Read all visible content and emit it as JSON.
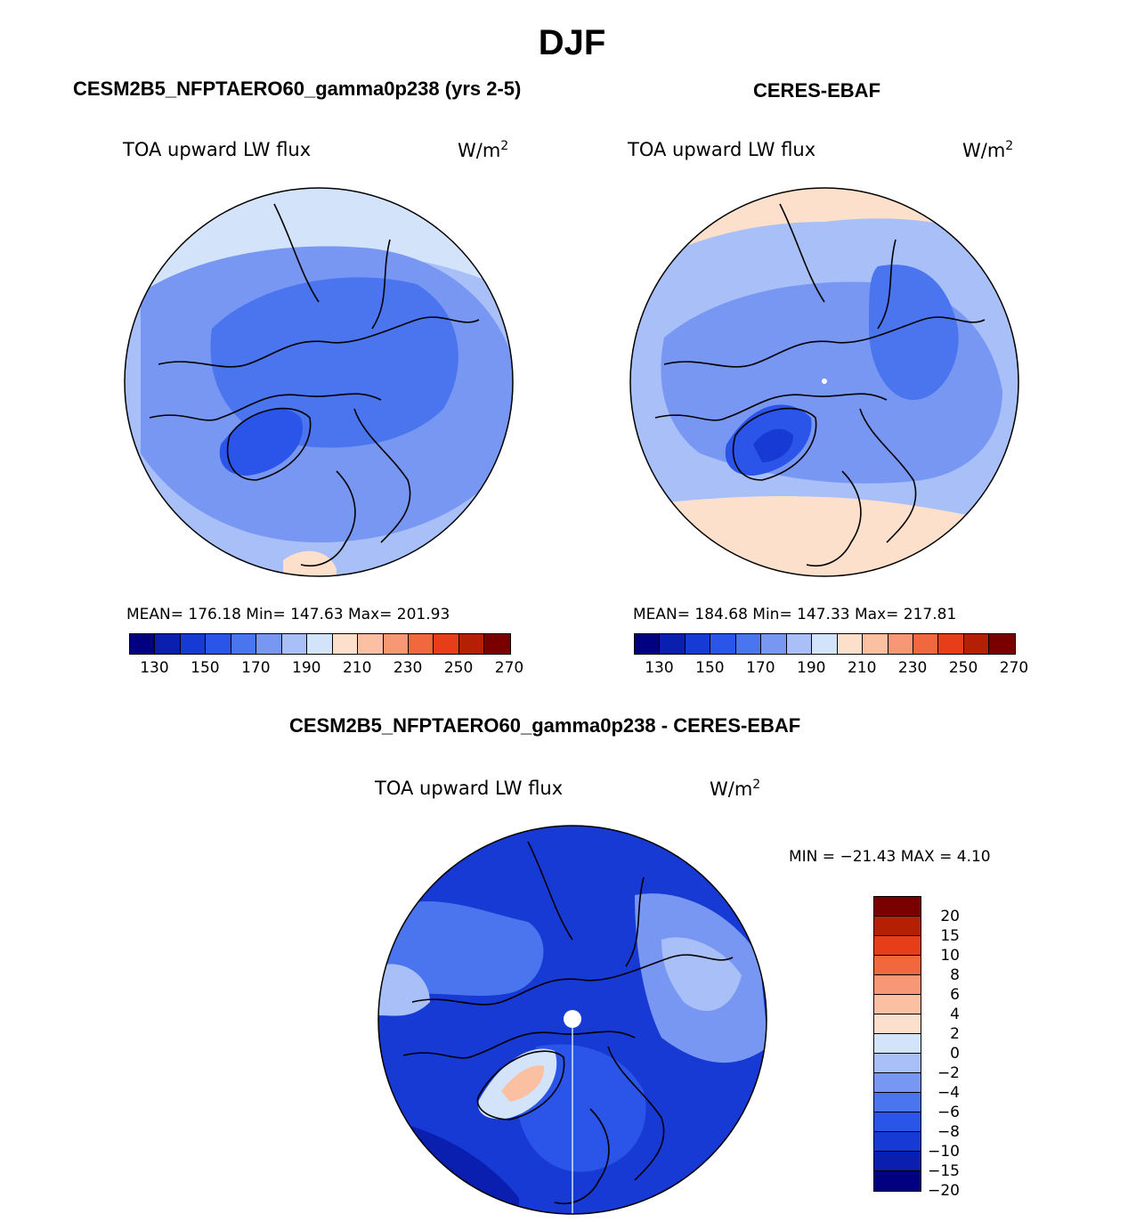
{
  "title": "DJF",
  "panels": {
    "model": {
      "title": "CESM2B5_NFPTAERO60_gamma0p238 (yrs 2-5)",
      "var_label": "TOA upward LW flux",
      "units_base": "W/m",
      "units_exp": "2",
      "stats": "MEAN= 176.18   Min= 147.63   Max= 201.93"
    },
    "obs": {
      "title": "CERES-EBAF",
      "var_label": "TOA upward LW flux",
      "units_base": "W/m",
      "units_exp": "2",
      "stats": "MEAN= 184.68   Min= 147.33   Max= 217.81"
    },
    "diff": {
      "title": "CESM2B5_NFPTAERO60_gamma0p238 - CERES-EBAF",
      "var_label": "TOA upward LW flux",
      "units_base": "W/m",
      "units_exp": "2",
      "stats": "MIN = −21.43 MAX =    4.10"
    }
  },
  "colorbars": {
    "abs_colors": [
      "#000080",
      "#0a1fb0",
      "#1739d4",
      "#2b54e8",
      "#4a75ee",
      "#7897f3",
      "#a8c0f7",
      "#d3e4fa",
      "#fde0cc",
      "#fbbfa2",
      "#f79776",
      "#f2683e",
      "#e53e18",
      "#b52005",
      "#7a0000"
    ],
    "abs_ticks": [
      "130",
      "150",
      "170",
      "190",
      "210",
      "230",
      "250",
      "270"
    ],
    "diff_colors": [
      "#7a0000",
      "#b52005",
      "#e53e18",
      "#f2683e",
      "#f79776",
      "#fbbfa2",
      "#fde0cc",
      "#d3e4fa",
      "#a8c0f7",
      "#7897f3",
      "#4a75ee",
      "#2b54e8",
      "#1739d4",
      "#0a1fb0",
      "#000080"
    ],
    "diff_ticks": [
      "20",
      "15",
      "10",
      "8",
      "6",
      "4",
      "2",
      "0",
      "−2",
      "−4",
      "−6",
      "−8",
      "−10",
      "−15",
      "−20"
    ]
  }
}
